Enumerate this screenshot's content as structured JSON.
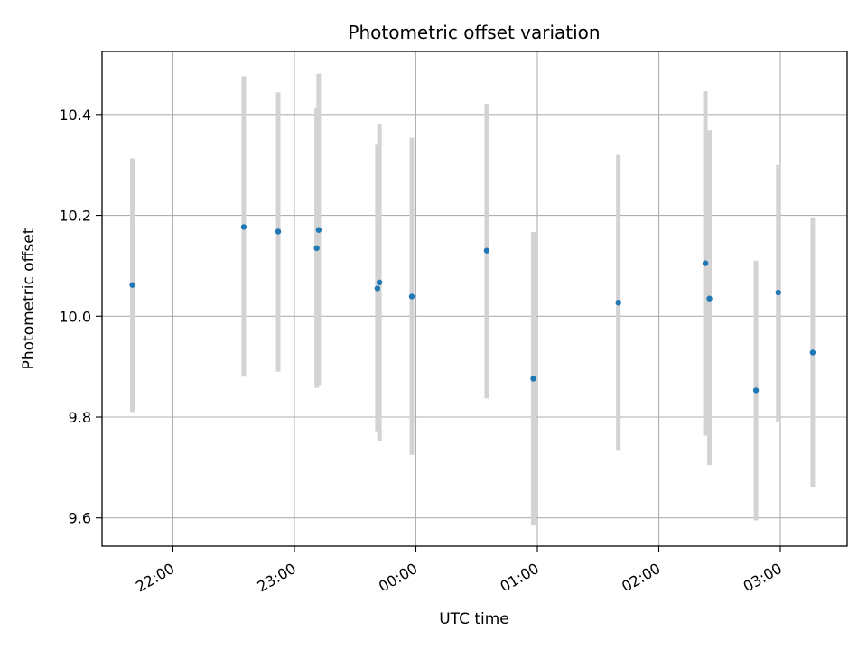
{
  "chart_data": {
    "type": "scatter",
    "title": "Photometric offset variation",
    "xlabel": "UTC time",
    "ylabel": "Photometric offset",
    "x_ticks": [
      "22:00",
      "23:00",
      "00:00",
      "01:00",
      "02:00",
      "03:00"
    ],
    "y_ticks": [
      "9.6",
      "9.8",
      "10.0",
      "10.2",
      "10.4"
    ],
    "ylim": [
      9.544,
      10.525
    ],
    "xlim": [
      "21:25",
      "03:33"
    ],
    "grid": true,
    "point_color": "#1f77b4",
    "errorbar_color": "#d3d3d3",
    "points": [
      {
        "time": "21:40",
        "value": 10.062,
        "low": 9.81,
        "high": 10.313
      },
      {
        "time": "22:35",
        "value": 10.177,
        "low": 9.88,
        "high": 10.476
      },
      {
        "time": "22:52",
        "value": 10.168,
        "low": 9.89,
        "high": 10.444
      },
      {
        "time": "23:11",
        "value": 10.135,
        "low": 9.858,
        "high": 10.413
      },
      {
        "time": "23:12",
        "value": 10.171,
        "low": 9.862,
        "high": 10.481
      },
      {
        "time": "23:41",
        "value": 10.055,
        "low": 9.772,
        "high": 10.34
      },
      {
        "time": "23:42",
        "value": 10.067,
        "low": 9.753,
        "high": 10.382
      },
      {
        "time": "23:58",
        "value": 10.039,
        "low": 9.725,
        "high": 10.354
      },
      {
        "time": "00:35",
        "value": 10.13,
        "low": 9.837,
        "high": 10.421
      },
      {
        "time": "00:58",
        "value": 9.876,
        "low": 9.585,
        "high": 10.167
      },
      {
        "time": "01:40",
        "value": 10.027,
        "low": 9.733,
        "high": 10.32
      },
      {
        "time": "02:23",
        "value": 10.105,
        "low": 9.763,
        "high": 10.446
      },
      {
        "time": "02:25",
        "value": 10.035,
        "low": 9.705,
        "high": 10.369
      },
      {
        "time": "02:48",
        "value": 9.853,
        "low": 9.595,
        "high": 10.11
      },
      {
        "time": "02:59",
        "value": 10.047,
        "low": 9.79,
        "high": 10.3
      },
      {
        "time": "03:16",
        "value": 9.928,
        "low": 9.662,
        "high": 10.196
      }
    ]
  }
}
